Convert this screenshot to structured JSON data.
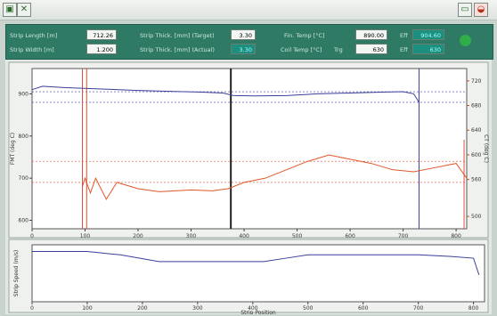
{
  "panel": {
    "strip_length_label": "Strip Length [m]",
    "strip_length_value": "712.26",
    "strip_width_label": "Strip Width [m]",
    "strip_width_value": "1.200",
    "thick_target_label": "Strip Thick. [mm] (Target)",
    "thick_target_value": "3.30",
    "thick_actual_label": "Strip Thick. [mm] (Actual)",
    "thick_actual_value": "3.30",
    "fin_temp_label": "Fin. Temp [°C]",
    "fin_temp_value": "890.00",
    "fin_temp_eff_label": "Eff",
    "fin_temp_eff_value": "904.60",
    "coil_temp_label": "Coil Temp [°C]",
    "coil_temp_trg_label": "Trg",
    "coil_temp_trg_value": "630",
    "coil_temp_eff_label": "Eff",
    "coil_temp_eff_value": "630",
    "status_color": "#2fae4a"
  },
  "icons": {
    "left": "window-icon",
    "right_1": "monitor-icon",
    "right_2": "bowl-icon"
  },
  "chart_data": [
    {
      "type": "line",
      "xlabel": "Strip Position (m)",
      "ylabel_left": "FMT (deg C)",
      "ylabel_right": "CT (deg C)",
      "x_ticks": [
        0,
        100,
        200,
        300,
        400,
        500,
        600,
        700,
        800
      ],
      "y_left_ticks": [
        600,
        700,
        800,
        900
      ],
      "y_right_ticks": [
        500,
        560,
        600,
        640,
        680,
        720
      ],
      "xlim": [
        0,
        820
      ],
      "series": [
        {
          "color": "#3a3f9a",
          "x": [
            0,
            20,
            60,
            120,
            200,
            260,
            320,
            360,
            380,
            420,
            480,
            540,
            600,
            660,
            700,
            720,
            730
          ],
          "values": [
            910,
            918,
            915,
            912,
            908,
            906,
            904,
            902,
            896,
            895,
            896,
            900,
            902,
            904,
            905,
            900,
            880
          ]
        },
        {
          "color": "#e2572a",
          "x": [
            95,
            100,
            110,
            120,
            140,
            160,
            200,
            240,
            300,
            340,
            370,
            400,
            440,
            480,
            520,
            560,
            600,
            640,
            680,
            720,
            760,
            800,
            820
          ],
          "values": [
            680,
            700,
            665,
            700,
            650,
            690,
            675,
            668,
            672,
            670,
            675,
            690,
            700,
            720,
            740,
            755,
            745,
            735,
            720,
            715,
            725,
            735,
            700
          ]
        }
      ]
    },
    {
      "type": "line",
      "xlabel": "Strip Position",
      "ylabel": "Strip Speed (m/s)",
      "x_ticks": [
        0,
        100,
        200,
        300,
        400,
        500,
        600,
        700,
        800
      ],
      "series": [
        {
          "color": "#3a3f9a",
          "x": [
            0,
            100,
            160,
            230,
            300,
            350,
            420,
            460,
            500,
            560,
            640,
            700,
            760,
            800,
            810
          ],
          "values": [
            7.5,
            7.5,
            7.4,
            7.2,
            7.2,
            7.2,
            7.2,
            7.3,
            7.4,
            7.4,
            7.4,
            7.4,
            7.35,
            7.3,
            6.8
          ]
        }
      ]
    }
  ]
}
